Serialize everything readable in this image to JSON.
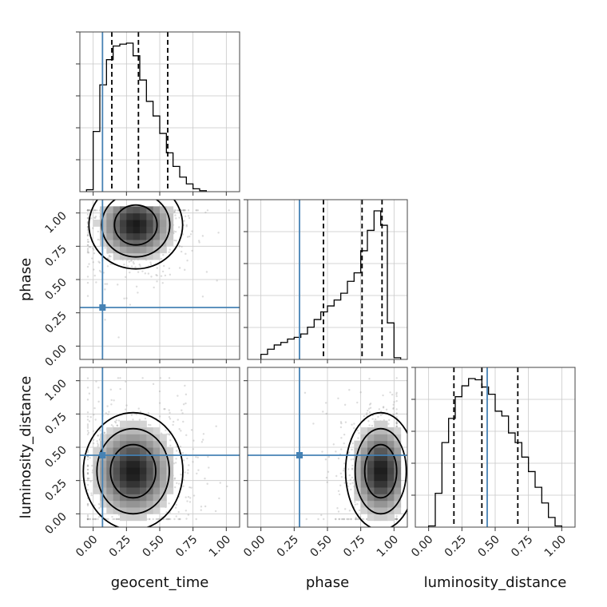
{
  "chart_data": {
    "type": "corner",
    "parameters": [
      "geocent_time",
      "phase",
      "luminosity_distance"
    ],
    "truths": [
      0.07,
      0.29,
      0.44
    ],
    "quantiles": {
      "geocent_time": [
        0.14,
        0.34,
        0.56
      ],
      "phase": [
        0.47,
        0.76,
        0.91
      ],
      "luminosity_distance": [
        0.19,
        0.4,
        0.67
      ]
    },
    "axis_range": [
      -0.1,
      1.1
    ],
    "tick_labels": [
      "0.00",
      "0.25",
      "0.50",
      "0.75",
      "1.00"
    ],
    "tick_values": [
      0,
      0.25,
      0.5,
      0.75,
      1.0
    ],
    "histograms": {
      "geocent_time": {
        "bin_start": -0.05,
        "bin_width": 0.05,
        "counts": [
          2,
          62,
          110,
          136,
          150,
          152,
          153,
          140,
          115,
          93,
          78,
          60,
          40,
          26,
          15,
          8,
          3,
          1
        ]
      },
      "phase": {
        "bin_start": 0.0,
        "bin_width": 0.05,
        "counts": [
          6,
          12,
          17,
          20,
          24,
          26,
          30,
          38,
          47,
          56,
          63,
          70,
          78,
          92,
          102,
          128,
          152,
          175,
          158,
          43,
          2
        ]
      },
      "luminosity_distance": {
        "bin_start": 0.0,
        "bin_width": 0.05,
        "counts": [
          1,
          28,
          70,
          90,
          108,
          117,
          123,
          122,
          116,
          110,
          96,
          92,
          78,
          70,
          58,
          46,
          33,
          20,
          8,
          1
        ]
      }
    },
    "joint_densities": [
      {
        "x": "geocent_time",
        "y": "phase",
        "peak": [
          0.32,
          0.91
        ],
        "spread": [
          0.16,
          0.15
        ]
      },
      {
        "x": "geocent_time",
        "y": "luminosity_distance",
        "peak": [
          0.3,
          0.32
        ],
        "spread": [
          0.17,
          0.2
        ]
      },
      {
        "x": "phase",
        "y": "luminosity_distance",
        "peak": [
          0.9,
          0.32
        ],
        "spread": [
          0.12,
          0.2
        ]
      }
    ]
  },
  "colors": {
    "truth": "#4682b4",
    "hist": "#000000",
    "grid": "#c8c8c8",
    "density_dark": "#000000"
  }
}
